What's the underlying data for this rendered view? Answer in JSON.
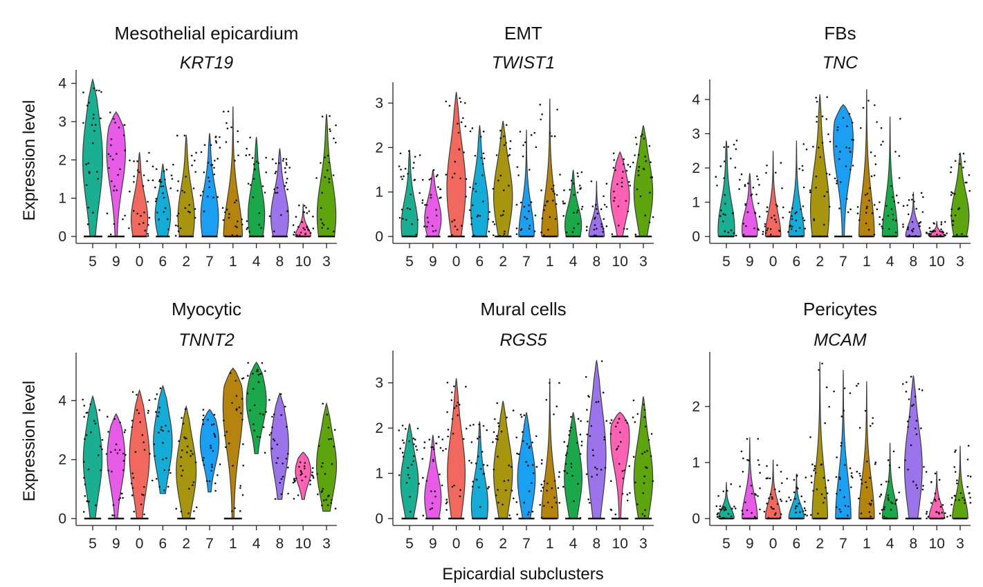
{
  "chart_data": {
    "type": "violin",
    "xlabel": "Epicardial subclusters",
    "ylabel": "Expression level",
    "categories": [
      "5",
      "9",
      "0",
      "6",
      "2",
      "7",
      "1",
      "4",
      "8",
      "10",
      "3"
    ],
    "colors": [
      "#1aae92",
      "#e85ae8",
      "#f0685e",
      "#14acd6",
      "#a7940f",
      "#1a9ff2",
      "#b5840e",
      "#1aa84a",
      "#9b74ec",
      "#ff61b4",
      "#5ea40f"
    ],
    "panels": [
      {
        "title": "Mesothelial epicardium",
        "gene": "KRT19",
        "ylim": [
          0,
          4.1
        ],
        "yticks": [
          0,
          1,
          2,
          3,
          4
        ],
        "max": [
          4.1,
          3.25,
          2.2,
          1.9,
          2.65,
          2.7,
          3.4,
          2.6,
          2.3,
          0.85,
          3.2
        ],
        "shape": [
          2.0,
          2.2,
          0.45,
          0.55,
          0.5,
          0.5,
          0.0,
          0.55,
          0.5,
          0.0,
          0.55
        ],
        "width": [
          0.9,
          0.85,
          0.75,
          0.7,
          0.75,
          0.8,
          0.85,
          0.75,
          0.8,
          0.7,
          0.85
        ]
      },
      {
        "title": "EMT",
        "gene": "TWIST1",
        "ylim": [
          0,
          3.25
        ],
        "yticks": [
          0,
          1,
          2,
          3
        ],
        "max": [
          1.95,
          1.5,
          3.25,
          2.5,
          2.6,
          2.4,
          3.1,
          1.5,
          1.25,
          1.9,
          2.5
        ],
        "shape": [
          0.25,
          0.4,
          1.1,
          0.6,
          0.9,
          0.0,
          0.0,
          0.25,
          0.0,
          0.9,
          1.0
        ],
        "width": [
          0.75,
          0.75,
          0.85,
          0.8,
          0.85,
          0.7,
          0.75,
          0.75,
          0.7,
          0.85,
          0.85
        ]
      },
      {
        "title": "FBs",
        "gene": "TNC",
        "ylim": [
          0,
          4.3
        ],
        "yticks": [
          0,
          1,
          2,
          3,
          4
        ],
        "max": [
          2.8,
          1.85,
          2.5,
          2.8,
          4.15,
          3.85,
          4.3,
          3.5,
          1.3,
          0.45,
          2.45
        ],
        "shape": [
          0.2,
          0.2,
          0.0,
          0.0,
          0.8,
          2.8,
          0.0,
          0.0,
          0.0,
          0.0,
          0.6
        ],
        "width": [
          0.75,
          0.7,
          0.7,
          0.7,
          0.85,
          0.9,
          0.7,
          0.7,
          0.7,
          0.7,
          0.8
        ]
      },
      {
        "title": "Myocytic",
        "gene": "TNNT2",
        "ylim": [
          0,
          5.3
        ],
        "yticks": [
          0,
          2,
          4
        ],
        "max": [
          4.15,
          3.55,
          4.35,
          4.5,
          3.8,
          3.7,
          5.1,
          5.3,
          4.25,
          2.25,
          3.9
        ],
        "min": [
          0.0,
          0.0,
          0.0,
          0.85,
          0.0,
          0.9,
          0.0,
          2.2,
          0.65,
          0.65,
          0.25
        ],
        "shape": [
          2.0,
          2.1,
          2.1,
          2.6,
          1.6,
          2.6,
          3.8,
          4.0,
          2.5,
          1.6,
          1.8
        ],
        "width": [
          0.85,
          0.8,
          0.9,
          0.85,
          0.9,
          0.85,
          0.9,
          0.9,
          0.8,
          0.7,
          0.9
        ]
      },
      {
        "title": "Mural cells",
        "gene": "RGS5",
        "ylim": [
          0,
          3.5
        ],
        "yticks": [
          0,
          1,
          2,
          3
        ],
        "max": [
          2.1,
          1.85,
          3.1,
          2.15,
          2.6,
          2.35,
          3.1,
          2.35,
          3.5,
          2.35,
          2.7
        ],
        "shape": [
          0.8,
          0.45,
          1.0,
          0.3,
          1.0,
          0.9,
          0.0,
          0.9,
          1.4,
          1.8,
          0.9
        ],
        "width": [
          0.8,
          0.75,
          0.8,
          0.75,
          0.85,
          0.8,
          0.75,
          0.8,
          0.85,
          0.85,
          0.85
        ]
      },
      {
        "title": "Pericytes",
        "gene": "MCAM",
        "ylim": [
          0,
          2.8
        ],
        "yticks": [
          0,
          1,
          2
        ],
        "max": [
          0.65,
          1.45,
          1.05,
          0.8,
          2.8,
          2.65,
          2.45,
          1.35,
          2.55,
          0.85,
          1.3
        ],
        "shape": [
          0.0,
          0.0,
          0.0,
          0.0,
          0.0,
          0.0,
          0.0,
          0.0,
          0.9,
          0.0,
          0.0
        ],
        "width": [
          0.7,
          0.7,
          0.7,
          0.7,
          0.7,
          0.7,
          0.7,
          0.7,
          0.8,
          0.7,
          0.7
        ]
      }
    ]
  }
}
